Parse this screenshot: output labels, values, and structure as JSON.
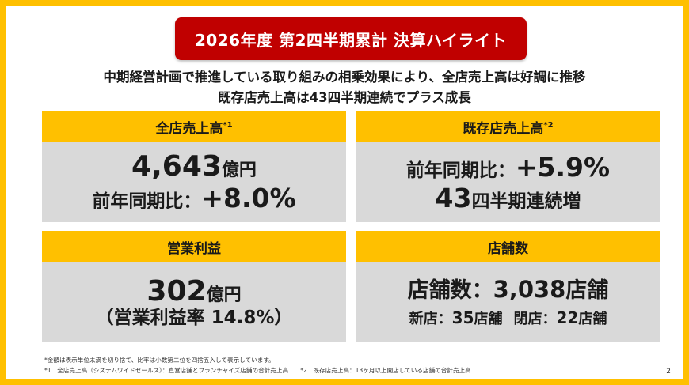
{
  "title": "2026年度 第2四半期累計 決算ハイライト",
  "subtitle": {
    "line1": "中期経営計画で推進している取り組みの相乗効果により、全店売上高は好調に推移",
    "line2": "既存店売上高は43四半期連続でプラス成長"
  },
  "cards": {
    "all_store_sales": {
      "heading": "全店売上高",
      "heading_note": "*1",
      "value": "4,643",
      "value_unit": "億円",
      "yoy_label": "前年同期比：",
      "yoy_value": "+8.0%"
    },
    "existing_store_sales": {
      "heading": "既存店売上高",
      "heading_note": "*2",
      "yoy_label": "前年同期比：",
      "yoy_value": "+5.9%",
      "streak_value": "43",
      "streak_label": "四半期連続増"
    },
    "operating_profit": {
      "heading": "営業利益",
      "value": "302",
      "value_unit": "億円",
      "margin": "（営業利益率 14.8%）"
    },
    "store_count": {
      "heading": "店舗数",
      "total_label": "店舗数：",
      "total_value": "3,038",
      "total_unit": "店舗",
      "new_label": "新店：",
      "new_value": "35",
      "new_unit": "店舗",
      "closed_label": "閉店：",
      "closed_value": "22",
      "closed_unit": "店舗"
    }
  },
  "notes": {
    "line1": "*金額は表示単位未満を切り捨て、比率は小数第二位を四捨五入して表示しています。",
    "line2": "*1　全店売上高（システムワイドセールス）：直営店舗とフランチャイズ店舗の合計売上高　　*2　既存店売上高：13ヶ月以上開店している店舗の合計売上高"
  },
  "page_number": "2",
  "colors": {
    "frame": "#ffc000",
    "banner": "#c00000",
    "card_header": "#ffc000",
    "card_body": "#d9d9d9"
  }
}
